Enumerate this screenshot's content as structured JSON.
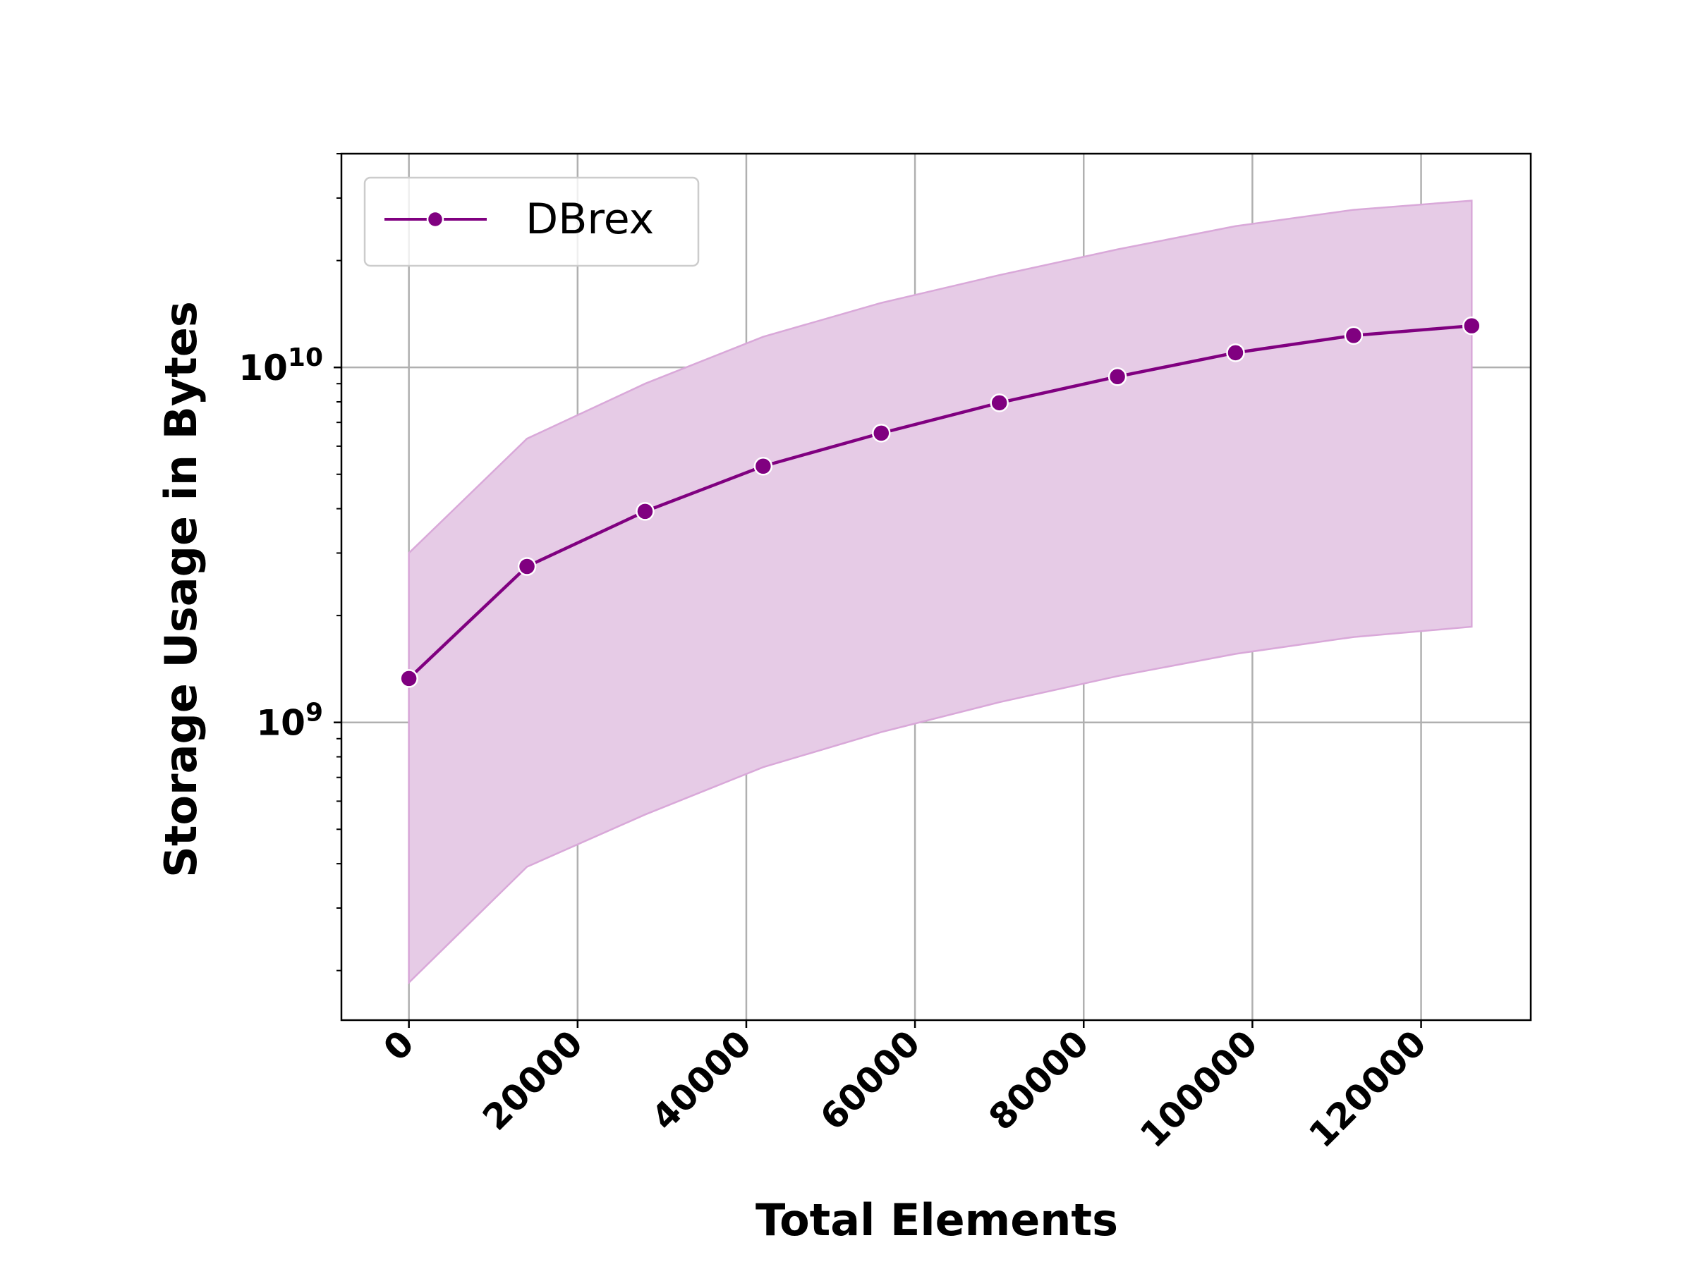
{
  "chart_data": {
    "type": "line",
    "title": "",
    "xlabel": "Total Elements",
    "ylabel": "Storage Usage in Bytes",
    "xscale": "linear",
    "yscale": "log",
    "xlim": [
      -8000,
      133000
    ],
    "ylim": [
      145000000,
      40000000000
    ],
    "x_ticks": [
      0,
      20000,
      40000,
      60000,
      80000,
      100000,
      120000
    ],
    "x_tick_labels": [
      "0",
      "20000",
      "40000",
      "60000",
      "80000",
      "100000",
      "120000"
    ],
    "y_major_ticks": [
      {
        "value": 1000000000,
        "base": "10",
        "exponent": "9"
      },
      {
        "value": 10000000000,
        "base": "10",
        "exponent": "10"
      }
    ],
    "grid": true,
    "legend": {
      "placement": "top-left"
    },
    "series": [
      {
        "name": "DBrex",
        "color": "#800080",
        "band_color": "#e6cbe6",
        "x": [
          0,
          14000,
          28000,
          42000,
          56000,
          70000,
          84000,
          98000,
          112000,
          126000
        ],
        "y": [
          1330000000,
          2750000000,
          3930000000,
          5270000000,
          6530000000,
          7950000000,
          9420000000,
          11000000000,
          12300000000,
          13100000000
        ],
        "y_lower": [
          185000000,
          392000000,
          550000000,
          748000000,
          939000000,
          1140000000,
          1350000000,
          1560000000,
          1740000000,
          1860000000
        ],
        "y_upper": [
          3000000000,
          6300000000,
          9000000000,
          12200000000,
          15200000000,
          18200000000,
          21500000000,
          25000000000,
          27800000000,
          29500000000
        ]
      }
    ]
  }
}
